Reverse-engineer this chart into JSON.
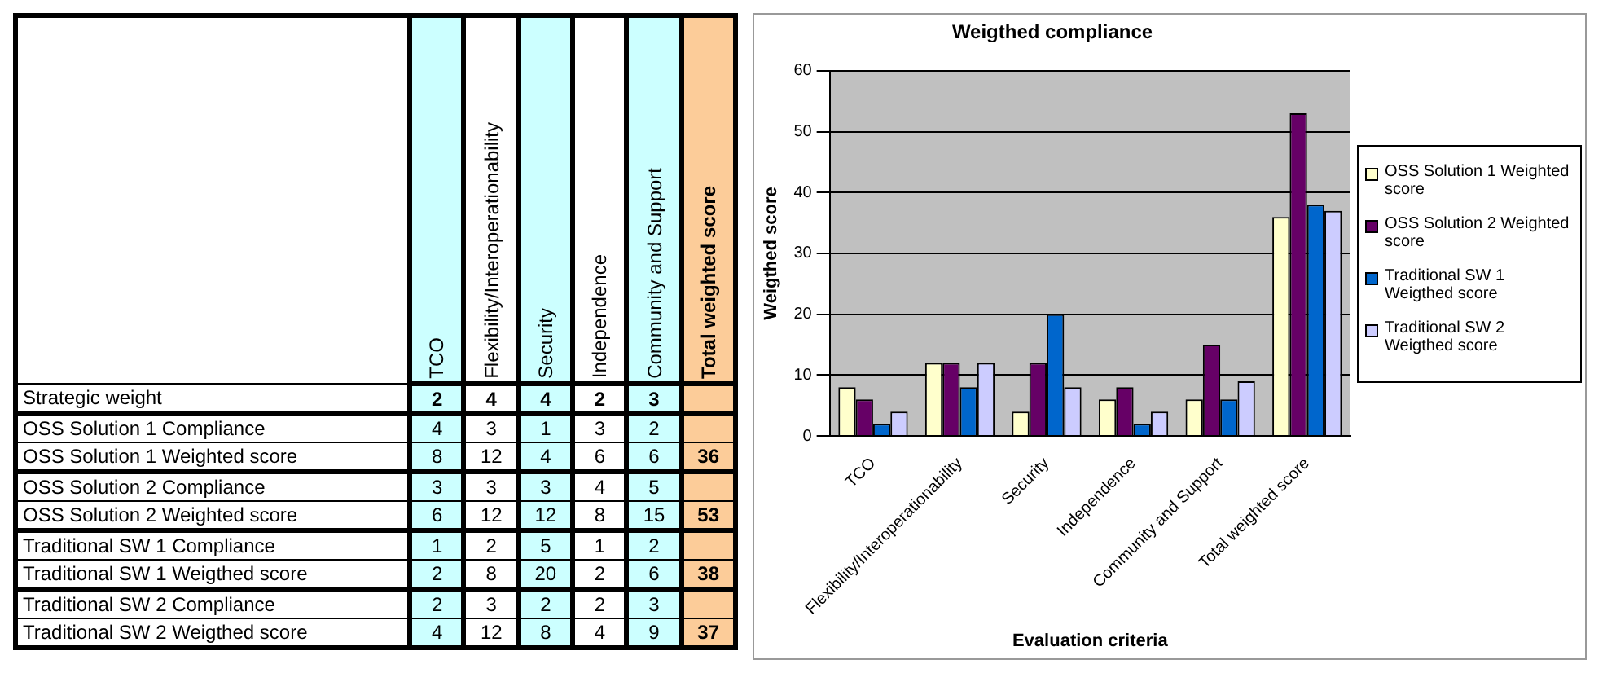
{
  "chart_data": [
    {
      "type": "heatmap",
      "data_labels": true,
      "categories": [
        "TCO",
        "Flexibility/Interoperationability",
        "Security",
        "Independence",
        "Community and Support",
        "Total weighted score"
      ],
      "y_categories": [
        "Strategic weight",
        "OSS Solution 1 Compliance",
        "OSS Solution 1 Weighted score",
        "OSS Solution 2 Compliance",
        "OSS Solution 2 Weighted score",
        "Traditional SW 1 Compliance",
        "Traditional SW 1 Weigthed score",
        "Traditional SW 2 Compliance",
        "Traditional SW 2 Weigthed score"
      ],
      "cells": [
        [
          2,
          4,
          4,
          2,
          3,
          null
        ],
        [
          4,
          3,
          1,
          3,
          2,
          null
        ],
        [
          8,
          12,
          4,
          6,
          6,
          36
        ],
        [
          3,
          3,
          3,
          4,
          5,
          null
        ],
        [
          6,
          12,
          12,
          8,
          15,
          53
        ],
        [
          1,
          2,
          5,
          1,
          2,
          null
        ],
        [
          2,
          8,
          20,
          2,
          6,
          38
        ],
        [
          2,
          3,
          2,
          2,
          3,
          null
        ],
        [
          4,
          12,
          8,
          4,
          9,
          37
        ]
      ]
    },
    {
      "type": "bar",
      "title": "Weigthed compliance",
      "xlabel": "Evaluation criteria",
      "ylabel": "Weigthed score",
      "categories": [
        "TCO",
        "Flexibility/Interoperationability",
        "Security",
        "Independence",
        "Community and Support",
        "Total weighted score"
      ],
      "series": [
        {
          "name": "OSS Solution 1 Weighted score",
          "color": "#ffffcc",
          "values": [
            8,
            12,
            4,
            6,
            6,
            36
          ]
        },
        {
          "name": "OSS Solution 2 Weighted score",
          "color": "#660066",
          "values": [
            6,
            12,
            12,
            8,
            15,
            53
          ]
        },
        {
          "name": "Traditional SW 1 Weigthed score",
          "color": "#0066cc",
          "values": [
            2,
            8,
            20,
            2,
            6,
            38
          ]
        },
        {
          "name": "Traditional SW 2 Weigthed score",
          "color": "#ccccff",
          "values": [
            4,
            12,
            8,
            4,
            9,
            37
          ]
        }
      ],
      "ylim": [
        0,
        60
      ],
      "yticks": [
        0,
        10,
        20,
        30,
        40,
        50,
        60
      ],
      "grid": "y",
      "legend": "right"
    }
  ]
}
